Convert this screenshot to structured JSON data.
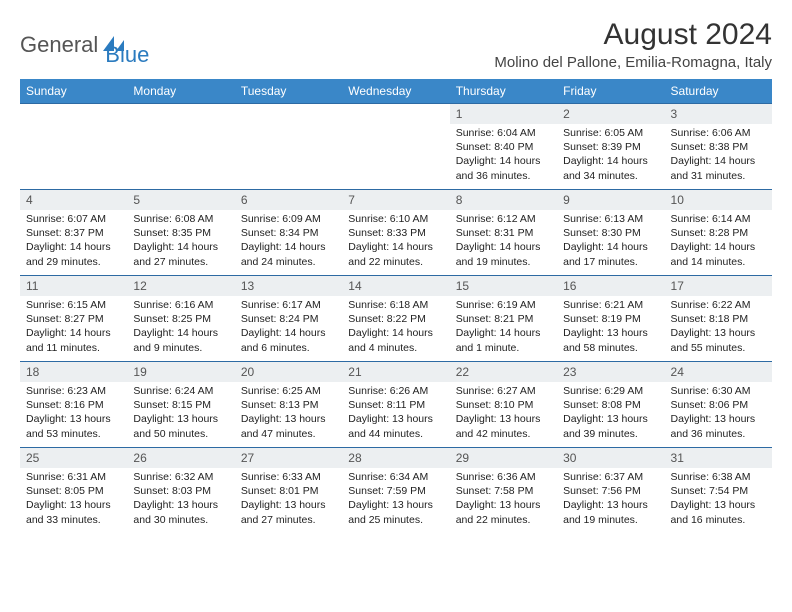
{
  "logo": {
    "part1": "General",
    "part2": "Blue"
  },
  "title": "August 2024",
  "location": "Molino del Pallone, Emilia-Romagna, Italy",
  "colors": {
    "header_bg": "#3a87c8",
    "header_text": "#ffffff",
    "row_border": "#2d6aa3",
    "daynum_bg": "#eceff1",
    "daynum_text": "#555555",
    "body_text": "#222222",
    "logo_gray": "#555555",
    "logo_blue": "#2b7bbf"
  },
  "headers": [
    "Sunday",
    "Monday",
    "Tuesday",
    "Wednesday",
    "Thursday",
    "Friday",
    "Saturday"
  ],
  "weeks": [
    [
      null,
      null,
      null,
      null,
      {
        "d": "1",
        "sr": "6:04 AM",
        "ss": "8:40 PM",
        "dl": "14 hours and 36 minutes."
      },
      {
        "d": "2",
        "sr": "6:05 AM",
        "ss": "8:39 PM",
        "dl": "14 hours and 34 minutes."
      },
      {
        "d": "3",
        "sr": "6:06 AM",
        "ss": "8:38 PM",
        "dl": "14 hours and 31 minutes."
      }
    ],
    [
      {
        "d": "4",
        "sr": "6:07 AM",
        "ss": "8:37 PM",
        "dl": "14 hours and 29 minutes."
      },
      {
        "d": "5",
        "sr": "6:08 AM",
        "ss": "8:35 PM",
        "dl": "14 hours and 27 minutes."
      },
      {
        "d": "6",
        "sr": "6:09 AM",
        "ss": "8:34 PM",
        "dl": "14 hours and 24 minutes."
      },
      {
        "d": "7",
        "sr": "6:10 AM",
        "ss": "8:33 PM",
        "dl": "14 hours and 22 minutes."
      },
      {
        "d": "8",
        "sr": "6:12 AM",
        "ss": "8:31 PM",
        "dl": "14 hours and 19 minutes."
      },
      {
        "d": "9",
        "sr": "6:13 AM",
        "ss": "8:30 PM",
        "dl": "14 hours and 17 minutes."
      },
      {
        "d": "10",
        "sr": "6:14 AM",
        "ss": "8:28 PM",
        "dl": "14 hours and 14 minutes."
      }
    ],
    [
      {
        "d": "11",
        "sr": "6:15 AM",
        "ss": "8:27 PM",
        "dl": "14 hours and 11 minutes."
      },
      {
        "d": "12",
        "sr": "6:16 AM",
        "ss": "8:25 PM",
        "dl": "14 hours and 9 minutes."
      },
      {
        "d": "13",
        "sr": "6:17 AM",
        "ss": "8:24 PM",
        "dl": "14 hours and 6 minutes."
      },
      {
        "d": "14",
        "sr": "6:18 AM",
        "ss": "8:22 PM",
        "dl": "14 hours and 4 minutes."
      },
      {
        "d": "15",
        "sr": "6:19 AM",
        "ss": "8:21 PM",
        "dl": "14 hours and 1 minute."
      },
      {
        "d": "16",
        "sr": "6:21 AM",
        "ss": "8:19 PM",
        "dl": "13 hours and 58 minutes."
      },
      {
        "d": "17",
        "sr": "6:22 AM",
        "ss": "8:18 PM",
        "dl": "13 hours and 55 minutes."
      }
    ],
    [
      {
        "d": "18",
        "sr": "6:23 AM",
        "ss": "8:16 PM",
        "dl": "13 hours and 53 minutes."
      },
      {
        "d": "19",
        "sr": "6:24 AM",
        "ss": "8:15 PM",
        "dl": "13 hours and 50 minutes."
      },
      {
        "d": "20",
        "sr": "6:25 AM",
        "ss": "8:13 PM",
        "dl": "13 hours and 47 minutes."
      },
      {
        "d": "21",
        "sr": "6:26 AM",
        "ss": "8:11 PM",
        "dl": "13 hours and 44 minutes."
      },
      {
        "d": "22",
        "sr": "6:27 AM",
        "ss": "8:10 PM",
        "dl": "13 hours and 42 minutes."
      },
      {
        "d": "23",
        "sr": "6:29 AM",
        "ss": "8:08 PM",
        "dl": "13 hours and 39 minutes."
      },
      {
        "d": "24",
        "sr": "6:30 AM",
        "ss": "8:06 PM",
        "dl": "13 hours and 36 minutes."
      }
    ],
    [
      {
        "d": "25",
        "sr": "6:31 AM",
        "ss": "8:05 PM",
        "dl": "13 hours and 33 minutes."
      },
      {
        "d": "26",
        "sr": "6:32 AM",
        "ss": "8:03 PM",
        "dl": "13 hours and 30 minutes."
      },
      {
        "d": "27",
        "sr": "6:33 AM",
        "ss": "8:01 PM",
        "dl": "13 hours and 27 minutes."
      },
      {
        "d": "28",
        "sr": "6:34 AM",
        "ss": "7:59 PM",
        "dl": "13 hours and 25 minutes."
      },
      {
        "d": "29",
        "sr": "6:36 AM",
        "ss": "7:58 PM",
        "dl": "13 hours and 22 minutes."
      },
      {
        "d": "30",
        "sr": "6:37 AM",
        "ss": "7:56 PM",
        "dl": "13 hours and 19 minutes."
      },
      {
        "d": "31",
        "sr": "6:38 AM",
        "ss": "7:54 PM",
        "dl": "13 hours and 16 minutes."
      }
    ]
  ],
  "labels": {
    "sunrise": "Sunrise:",
    "sunset": "Sunset:",
    "daylight": "Daylight:"
  }
}
